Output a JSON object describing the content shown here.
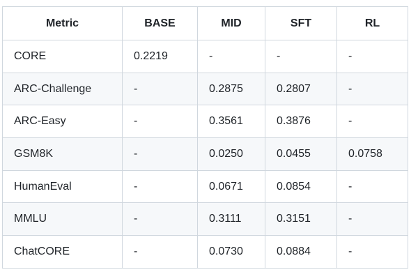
{
  "table": {
    "columns": [
      "Metric",
      "BASE",
      "MID",
      "SFT",
      "RL"
    ],
    "rows": [
      {
        "metric": "CORE",
        "values": [
          "0.2219",
          "-",
          "-",
          "-"
        ]
      },
      {
        "metric": "ARC-Challenge",
        "values": [
          "-",
          "0.2875",
          "0.2807",
          "-"
        ]
      },
      {
        "metric": "ARC-Easy",
        "values": [
          "-",
          "0.3561",
          "0.3876",
          "-"
        ]
      },
      {
        "metric": "GSM8K",
        "values": [
          "-",
          "0.0250",
          "0.0455",
          "0.0758"
        ]
      },
      {
        "metric": "HumanEval",
        "values": [
          "-",
          "0.0671",
          "0.0854",
          "-"
        ]
      },
      {
        "metric": "MMLU",
        "values": [
          "-",
          "0.3111",
          "0.3151",
          "-"
        ]
      },
      {
        "metric": "ChatCORE",
        "values": [
          "-",
          "0.0730",
          "0.0884",
          "-"
        ]
      }
    ],
    "colors": {
      "border": "#d0d7de",
      "stripe": "#f6f8fa",
      "text": "#1f2328",
      "background": "#ffffff"
    }
  }
}
